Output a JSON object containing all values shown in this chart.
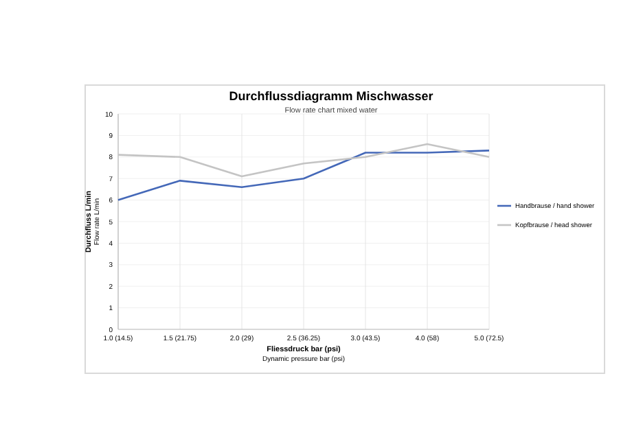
{
  "chart_data": {
    "type": "line",
    "title": "Durchflussdiagramm Mischwasser",
    "subtitle": "Flow rate chart mixed water",
    "xlabel": "Fliessdruck bar (psi)",
    "ylabel": "Durchfluss L/min",
    "annotations": [
      "Dynamic pressure bar (psi)",
      "Flow rate L/min"
    ],
    "categories": [
      "1.0 (14.5)",
      "1.5 (21.75)",
      "2.0 (29)",
      "2.5 (36.25)",
      "3.0 (43.5)",
      "4.0 (58)",
      "5.0 (72.5)"
    ],
    "series": [
      {
        "name": "Handbrause / hand shower",
        "color": "#4468b8",
        "values": [
          6.0,
          6.9,
          6.6,
          7.0,
          8.2,
          8.2,
          8.3
        ]
      },
      {
        "name": "Kopfbrause / head shower",
        "color": "#c4c4c4",
        "values": [
          8.1,
          8.0,
          7.1,
          7.7,
          8.0,
          8.6,
          8.0
        ]
      }
    ],
    "ylim": [
      0,
      10
    ],
    "yticks": [
      0,
      1,
      2,
      3,
      4,
      5,
      6,
      7,
      8,
      9,
      10
    ],
    "grid": true,
    "legend": "right",
    "marker": "none",
    "line_style": "solid"
  }
}
